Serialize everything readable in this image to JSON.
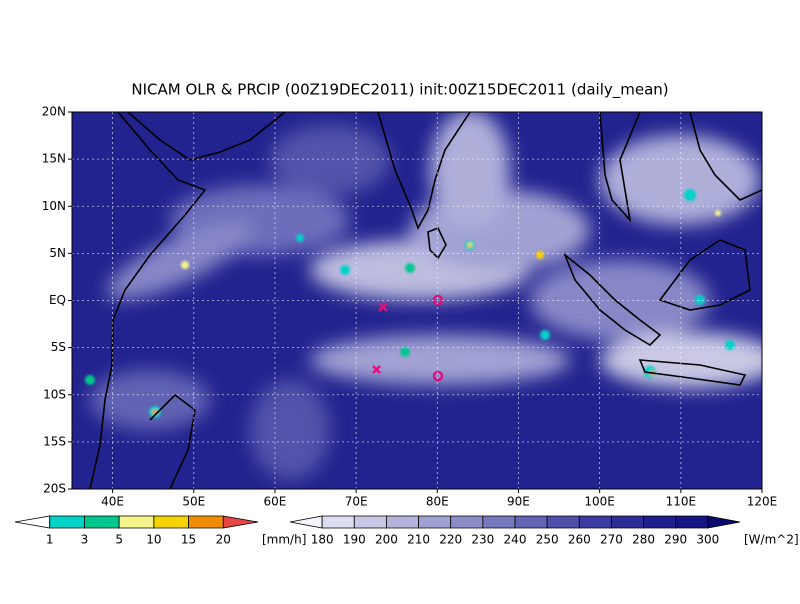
{
  "title": "NICAM OLR & PRCIP (00Z19DEC2011) init:00Z15DEC2011 (daily_mean)",
  "map": {
    "lat_labels": [
      "20N",
      "15N",
      "10N",
      "5N",
      "EQ",
      "5S",
      "10S",
      "15S",
      "20S"
    ],
    "lon_labels": [
      "40E",
      "50E",
      "60E",
      "70E",
      "80E",
      "90E",
      "100E",
      "110E",
      "120E"
    ]
  },
  "precip_colorbar": {
    "labels": [
      "1",
      "3",
      "5",
      "10",
      "15",
      "20"
    ],
    "unit": "[mm/h]",
    "colors": [
      "#ffffff",
      "#00d2c8",
      "#00c88c",
      "#f5f58c",
      "#f5d200",
      "#f08c00",
      "#e64646"
    ]
  },
  "olr_colorbar": {
    "labels": [
      "180",
      "190",
      "200",
      "210",
      "220",
      "230",
      "240",
      "250",
      "260",
      "270",
      "280",
      "290",
      "300"
    ],
    "unit": "[W/m^2]",
    "colors": [
      "#f4f4fa",
      "#dcdcf0",
      "#c8c8e6",
      "#b4b4dc",
      "#a0a0d2",
      "#8c8cc8",
      "#7878be",
      "#6464b4",
      "#5050aa",
      "#3c3ca0",
      "#2d2d96",
      "#1e1e8c",
      "#141482",
      "#0a0a6e"
    ]
  }
}
